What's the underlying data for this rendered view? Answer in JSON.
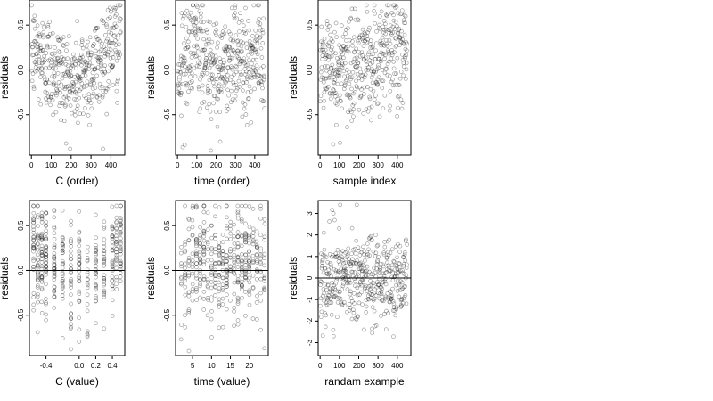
{
  "chart_data": [
    {
      "type": "scatter",
      "xlabel": "C (order)",
      "ylabel": "residuals",
      "xlim": [
        -10,
        470
      ],
      "ylim": [
        -0.95,
        0.78
      ],
      "xticks": [
        0,
        100,
        200,
        300,
        400
      ],
      "xtick_labels": [
        "0",
        "100",
        "200",
        "300",
        "400"
      ],
      "yticks": [
        -0.5,
        0,
        0.5
      ],
      "ytick_labels": [
        "-0.5",
        "0.0",
        "0.5"
      ],
      "reference_line_y": 0,
      "n_points": 450,
      "x_range_of_points": [
        1,
        450
      ],
      "y_range_of_points": [
        -0.88,
        0.72
      ],
      "profile": [
        {
          "x": 0,
          "y": 0.2
        },
        {
          "x": 100,
          "y": 0.05
        },
        {
          "x": 200,
          "y": -0.15
        },
        {
          "x": 300,
          "y": 0.0
        },
        {
          "x": 400,
          "y": 0.25
        },
        {
          "x": 450,
          "y": 0.3
        }
      ],
      "spread_sd": 0.28
    },
    {
      "type": "scatter",
      "xlabel": "time (order)",
      "ylabel": "residuals",
      "xlim": [
        -10,
        470
      ],
      "ylim": [
        -0.95,
        0.78
      ],
      "xticks": [
        0,
        100,
        200,
        300,
        400
      ],
      "xtick_labels": [
        "0",
        "100",
        "200",
        "300",
        "400"
      ],
      "yticks": [
        -0.5,
        0,
        0.5
      ],
      "ytick_labels": [
        "-0.5",
        "0.0",
        "0.5"
      ],
      "reference_line_y": 0,
      "n_points": 450,
      "x_range_of_points": [
        1,
        450
      ],
      "y_range_of_points": [
        -0.9,
        0.72
      ],
      "profile": [
        {
          "x": 0,
          "y": -0.05
        },
        {
          "x": 80,
          "y": 0.25
        },
        {
          "x": 200,
          "y": 0.0
        },
        {
          "x": 300,
          "y": 0.15
        },
        {
          "x": 450,
          "y": 0.1
        }
      ],
      "spread_sd": 0.3
    },
    {
      "type": "scatter",
      "xlabel": "sample index",
      "ylabel": "residuals",
      "xlim": [
        -10,
        470
      ],
      "ylim": [
        -0.95,
        0.78
      ],
      "xticks": [
        0,
        100,
        200,
        300,
        400
      ],
      "xtick_labels": [
        "0",
        "100",
        "200",
        "300",
        "400"
      ],
      "yticks": [
        -0.5,
        0,
        0.5
      ],
      "ytick_labels": [
        "-0.5",
        "0.0",
        "0.5"
      ],
      "reference_line_y": 0,
      "n_points": 450,
      "x_range_of_points": [
        1,
        450
      ],
      "y_range_of_points": [
        -0.9,
        0.72
      ],
      "profile": [
        {
          "x": 0,
          "y": 0.15
        },
        {
          "x": 100,
          "y": -0.05
        },
        {
          "x": 250,
          "y": 0.1
        },
        {
          "x": 400,
          "y": 0.2
        },
        {
          "x": 450,
          "y": 0.25
        }
      ],
      "spread_sd": 0.3
    },
    {
      "type": "scatter",
      "xlabel": "C (value)",
      "ylabel": "residuals",
      "xlim": [
        -0.6,
        0.55
      ],
      "ylim": [
        -0.95,
        0.78
      ],
      "xticks": [
        -0.4,
        0.0,
        0.2,
        0.4
      ],
      "xtick_labels": [
        "-0.4",
        "0.0",
        "0.2",
        "0.4"
      ],
      "yticks": [
        -0.5,
        0,
        0.5
      ],
      "ytick_labels": [
        "-0.5",
        "0.0",
        "0.5"
      ],
      "reference_line_y": 0,
      "n_points": 450,
      "discrete_x_values": [
        -0.55,
        -0.5,
        -0.45,
        -0.4,
        -0.3,
        -0.2,
        -0.1,
        0.0,
        0.1,
        0.2,
        0.3,
        0.4,
        0.45,
        0.5
      ],
      "y_range_of_points": [
        -0.88,
        0.72
      ],
      "profile": [
        {
          "x": -0.55,
          "y": 0.2
        },
        {
          "x": -0.2,
          "y": 0.0
        },
        {
          "x": 0.1,
          "y": -0.15
        },
        {
          "x": 0.4,
          "y": 0.2
        },
        {
          "x": 0.5,
          "y": 0.3
        }
      ],
      "spread_sd": 0.28
    },
    {
      "type": "scatter",
      "xlabel": "time (value)",
      "ylabel": "residuals",
      "xlim": [
        0.5,
        25
      ],
      "ylim": [
        -0.95,
        0.78
      ],
      "xticks": [
        5,
        10,
        15,
        20
      ],
      "xtick_labels": [
        "5",
        "10",
        "15",
        "20"
      ],
      "yticks": [
        -0.5,
        0,
        0.5
      ],
      "ytick_labels": [
        "-0.5",
        "0.0",
        "0.5"
      ],
      "reference_line_y": 0,
      "n_points": 450,
      "discrete_x_values": [
        2,
        3,
        4,
        5,
        6,
        7,
        8,
        9,
        10,
        11,
        12,
        13,
        14,
        15,
        16,
        17,
        18,
        19,
        20,
        21,
        22,
        23,
        24
      ],
      "y_range_of_points": [
        -0.9,
        0.72
      ],
      "profile": [
        {
          "x": 2,
          "y": -0.05
        },
        {
          "x": 7,
          "y": 0.2
        },
        {
          "x": 12,
          "y": 0.0
        },
        {
          "x": 18,
          "y": 0.15
        },
        {
          "x": 24,
          "y": 0.05
        }
      ],
      "spread_sd": 0.3
    },
    {
      "type": "scatter",
      "xlabel": "randam example",
      "ylabel": "residuals",
      "xlim": [
        -10,
        470
      ],
      "ylim": [
        -3.6,
        3.6
      ],
      "xticks": [
        0,
        100,
        200,
        300,
        400
      ],
      "xtick_labels": [
        "0",
        "100",
        "200",
        "300",
        "400"
      ],
      "yticks": [
        -3,
        -2,
        -1,
        0,
        1,
        2,
        3
      ],
      "ytick_labels": [
        "-3",
        "-2",
        "-1",
        "0",
        "1",
        "2",
        "3"
      ],
      "reference_line_y": 0,
      "n_points": 450,
      "x_range_of_points": [
        1,
        450
      ],
      "y_range_of_points": [
        -3.4,
        3.4
      ],
      "profile": [
        {
          "x": 0,
          "y": 0.0
        },
        {
          "x": 450,
          "y": 0.0
        }
      ],
      "spread_sd": 1.0
    }
  ]
}
